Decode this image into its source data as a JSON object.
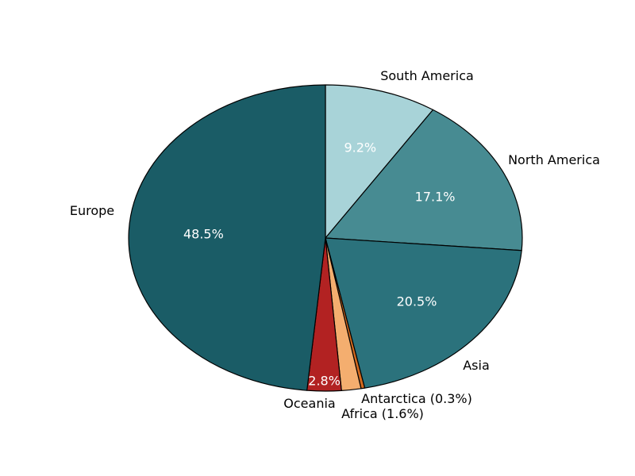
{
  "chart_data": {
    "type": "pie",
    "title": "",
    "start_angle_deg": 90,
    "direction": "clockwise",
    "slices": [
      {
        "label": "South America",
        "value": 9.2,
        "value_label": "9.2%",
        "color": "#a8d3d8",
        "label_outside": "South America"
      },
      {
        "label": "North America",
        "value": 17.1,
        "value_label": "17.1%",
        "color": "#478b92",
        "label_outside": "North America"
      },
      {
        "label": "Asia",
        "value": 20.5,
        "value_label": "20.5%",
        "color": "#2b727c",
        "label_outside": "Asia"
      },
      {
        "label": "Antarctica",
        "value": 0.3,
        "value_label": "",
        "color": "#d2691e",
        "label_outside": "Antarctica (0.3%)"
      },
      {
        "label": "Africa",
        "value": 1.6,
        "value_label": "",
        "color": "#f4ae6f",
        "label_outside": "Africa (1.6%)"
      },
      {
        "label": "Oceania",
        "value": 2.8,
        "value_label": "2.8%",
        "color": "#b22222",
        "label_outside": "Oceania"
      },
      {
        "label": "Europe",
        "value": 48.5,
        "value_label": "48.5%",
        "color": "#1a5c66",
        "label_outside": "Europe"
      }
    ]
  }
}
